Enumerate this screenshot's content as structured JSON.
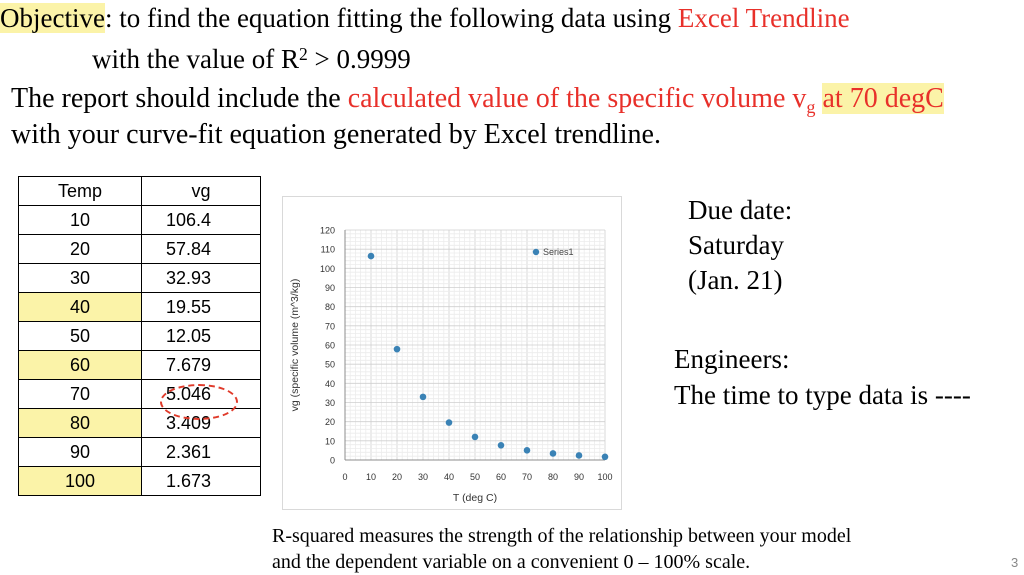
{
  "objective": {
    "label": "Objective",
    "text_a": ": to find the equation fitting the following data using ",
    "highlight": "Excel Trendline",
    "line2_a": "with the value of R",
    "sup": "2",
    "line2_b": " > 0.9999"
  },
  "report": {
    "a": "The report should include the ",
    "red": "calculated value of the specific volume v",
    "sub": "g",
    "highlight": "at 70 degC",
    "line2": "with your curve-fit equation generated by Excel trendline."
  },
  "table": {
    "headers": [
      "Temp",
      "vg"
    ],
    "rows": [
      [
        "10",
        "106.4"
      ],
      [
        "20",
        "57.84"
      ],
      [
        "30",
        "32.93"
      ],
      [
        "40",
        "19.55"
      ],
      [
        "50",
        "12.05"
      ],
      [
        "60",
        "7.679"
      ],
      [
        "70",
        "5.046"
      ],
      [
        "80",
        "3.409"
      ],
      [
        "90",
        "2.361"
      ],
      [
        "100",
        "1.673"
      ]
    ]
  },
  "due": {
    "line1": "Due date:",
    "line2": "Saturday",
    "line3": "(Jan. 21)"
  },
  "engineers": {
    "line1": "Engineers:",
    "line2": "The time to type data is ----"
  },
  "footnote": {
    "line1": "R-squared measures the strength of the relationship between your model",
    "line2": "and the dependent variable on a convenient 0 – 100% scale."
  },
  "page_number": "3",
  "chart_data": {
    "type": "scatter",
    "x": [
      10,
      20,
      30,
      40,
      50,
      60,
      70,
      80,
      90,
      100
    ],
    "series": [
      {
        "name": "Series1",
        "values": [
          106.4,
          57.84,
          32.93,
          19.55,
          12.05,
          7.679,
          5.046,
          3.409,
          2.361,
          1.673
        ]
      }
    ],
    "xlabel": "T (deg C)",
    "ylabel": "vg (specific volume (m^3/kg)",
    "xlim": [
      0,
      100
    ],
    "ylim": [
      0,
      120
    ],
    "xticks": [
      "0",
      "10",
      "20",
      "30",
      "40",
      "50",
      "60",
      "70",
      "80",
      "90",
      "100"
    ],
    "yticks": [
      "0",
      "10",
      "20",
      "30",
      "40",
      "50",
      "60",
      "70",
      "80",
      "90",
      "100",
      "110",
      "120"
    ],
    "grid": true,
    "legend": "top-right",
    "colors": {
      "marker": "#3a82b5",
      "grid": "#d4d4d4",
      "axis": "#8c8c8c"
    }
  }
}
